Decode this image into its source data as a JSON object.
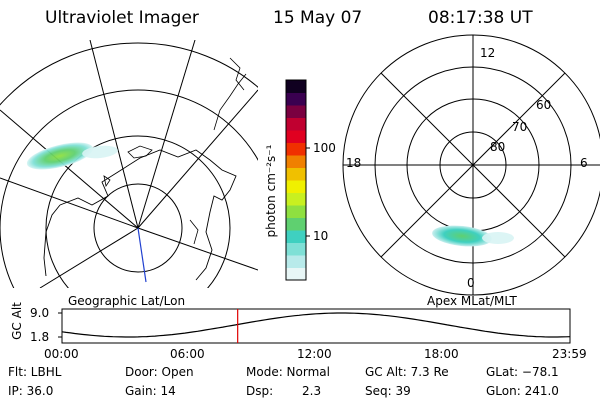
{
  "header": {
    "instrument": "Ultraviolet Imager",
    "date": "15 May 07",
    "time": "08:17:38 UT"
  },
  "geo_panel": {
    "label": "Geographic Lat/Lon"
  },
  "mag_panel": {
    "label": "Apex MLat/MLT",
    "mlt_labels": [
      "12",
      "18",
      "6",
      "0"
    ],
    "lat_labels": [
      "60",
      "70",
      "80"
    ]
  },
  "colorbar": {
    "unit_label": "photon cm⁻²s⁻¹",
    "tick_labels": [
      "100",
      "10"
    ],
    "scale": "log",
    "colors": [
      "#e8f6f6",
      "#b8eaea",
      "#7fe0d6",
      "#3fd0c0",
      "#5fd070",
      "#8fe040",
      "#c8f020",
      "#f0f000",
      "#f0c000",
      "#f08000",
      "#f03000",
      "#e00020",
      "#c00030",
      "#7a0040",
      "#3a0050",
      "#100020"
    ]
  },
  "altitude_plot": {
    "ylabel": "GC Alt",
    "y_ticks": [
      "9.0",
      "1.8"
    ],
    "x_ticks": [
      "00:00",
      "06:00",
      "12:00",
      "18:00",
      "23:59"
    ],
    "marker_time": "08:17:38",
    "curve_color": "#000000",
    "marker_color": "#e00000"
  },
  "footer": {
    "filter": "Flt: LBHL",
    "door": "Door: Open",
    "mode": "Mode: Normal",
    "gc_alt": "GC Alt: 7.3 Re",
    "glat": "GLat: −78.1",
    "ip": "IP: 36.0",
    "gain": "Gain: 14",
    "dsp_label": "Dsp:",
    "dsp_value": "2.3",
    "seq": "Seq: 39",
    "glon": "GLon: 241.0"
  }
}
